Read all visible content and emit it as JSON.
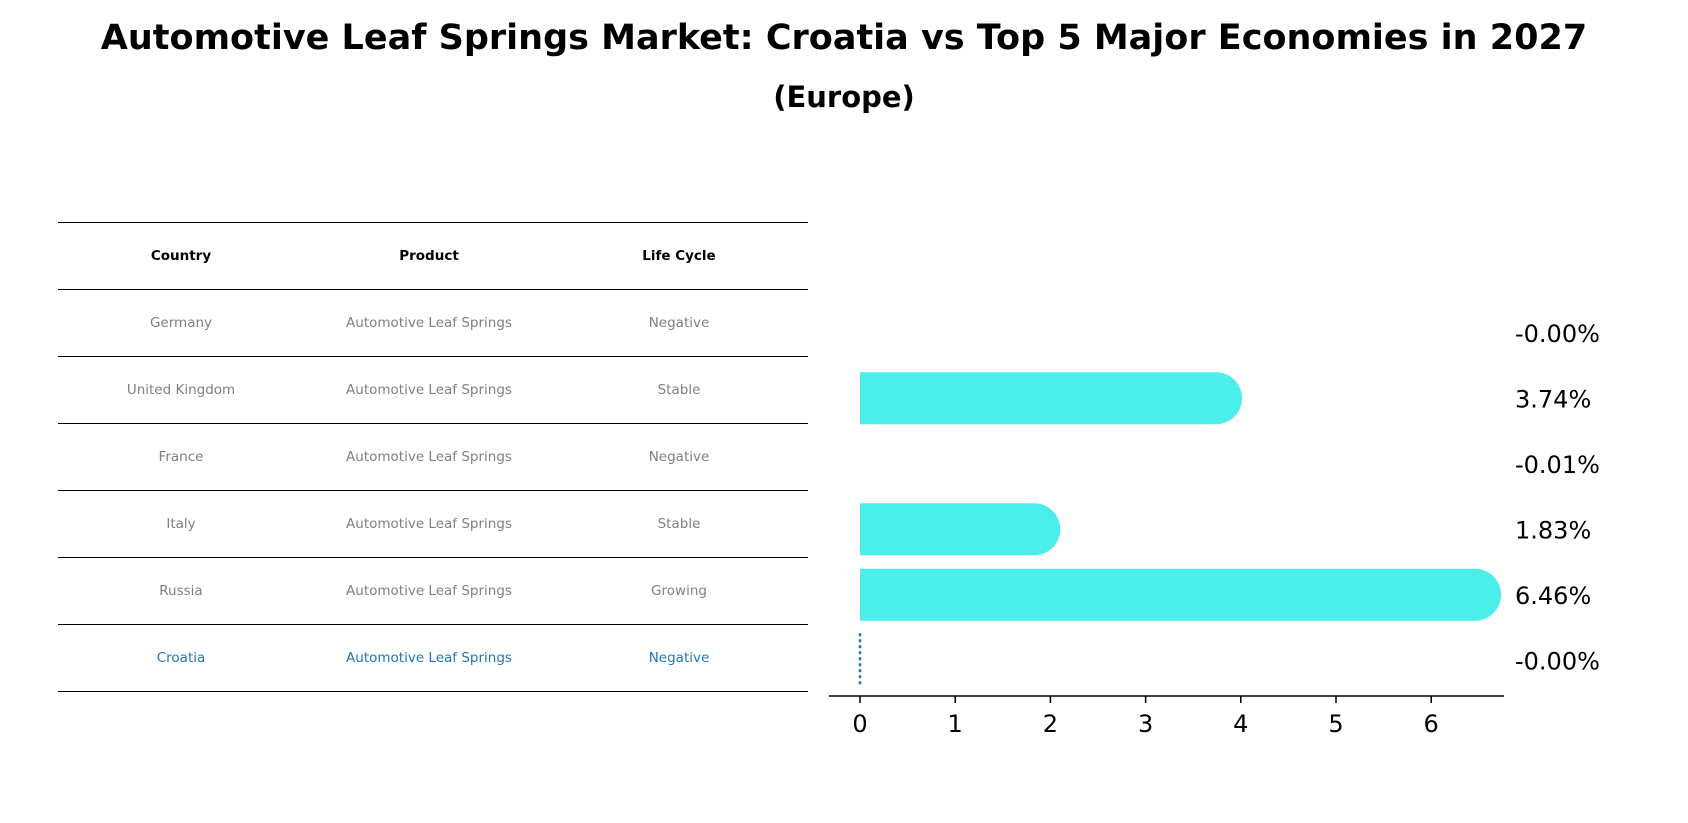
{
  "title": "Automotive Leaf Springs Market: Croatia vs Top 5 Major Economies in 2027",
  "subtitle": "(Europe)",
  "table": {
    "headers": [
      "Country",
      "Product",
      "Life Cycle"
    ],
    "rows": [
      [
        "Germany",
        "Automotive Leaf Springs",
        "Negative"
      ],
      [
        "United Kingdom",
        "Automotive Leaf Springs",
        "Stable"
      ],
      [
        "France",
        "Automotive Leaf Springs",
        "Negative"
      ],
      [
        "Italy",
        "Automotive Leaf Springs",
        "Stable"
      ],
      [
        "Russia",
        "Automotive Leaf Springs",
        "Growing"
      ],
      [
        "Croatia",
        "Automotive Leaf Springs",
        "Negative"
      ]
    ]
  },
  "colors": {
    "bar": "#4aeeea",
    "highlight": "#1f77b4",
    "muted_text": "#808080"
  },
  "chart_data": {
    "type": "bar",
    "orientation": "horizontal",
    "categories": [
      "Germany",
      "United Kingdom",
      "France",
      "Italy",
      "Russia",
      "Croatia"
    ],
    "values": [
      -0.0,
      3.74,
      -0.01,
      1.83,
      6.46,
      -0.0
    ],
    "value_labels": [
      "-0.00%",
      "3.74%",
      "-0.01%",
      "1.83%",
      "6.46%",
      "-0.00%"
    ],
    "highlight": "Croatia",
    "xlim": [
      -0.33,
      6.8
    ],
    "xticks": [
      "0",
      "1",
      "2",
      "3",
      "4",
      "5",
      "6"
    ],
    "xlabel": "",
    "ylabel": "",
    "grid": false
  }
}
